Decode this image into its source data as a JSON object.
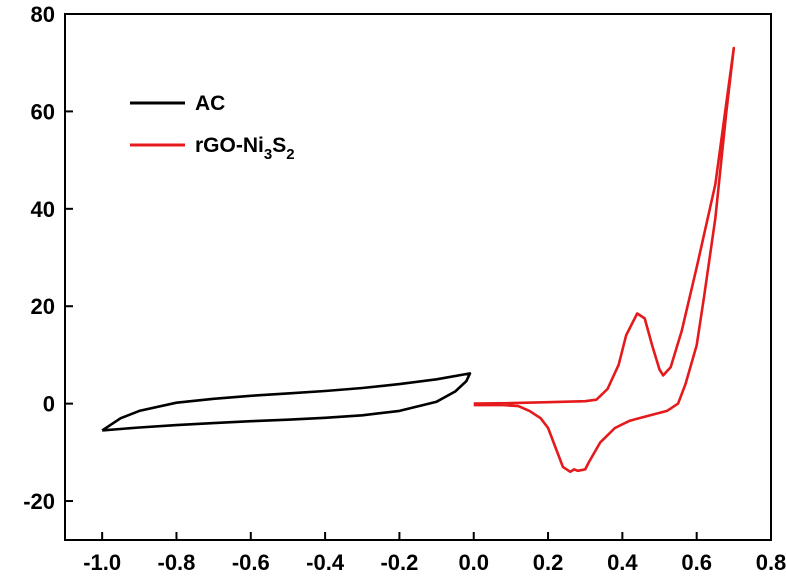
{
  "chart_data": {
    "type": "line",
    "title": "",
    "xlabel": "",
    "ylabel": "",
    "xlim": [
      -1.1,
      0.8
    ],
    "ylim": [
      -28,
      80
    ],
    "x_ticks": [
      -1.0,
      -0.8,
      -0.6,
      -0.4,
      -0.2,
      0.0,
      0.2,
      0.4,
      0.6,
      0.8
    ],
    "y_ticks": [
      -20,
      0,
      20,
      40,
      60,
      80
    ],
    "x_tick_labels": [
      "-1.0",
      "-0.8",
      "-0.6",
      "-0.4",
      "-0.2",
      "0.0",
      "0.2",
      "0.4",
      "0.6",
      "0.8"
    ],
    "y_tick_labels": [
      "-20",
      "0",
      "20",
      "40",
      "60",
      "80"
    ],
    "grid": false,
    "legend_position": "top-left",
    "series": [
      {
        "name": "AC",
        "legend_label": {
          "base": "AC"
        },
        "color": "#000000",
        "points": [
          [
            -1.0,
            -5.5
          ],
          [
            -0.95,
            -3.0
          ],
          [
            -0.9,
            -1.5
          ],
          [
            -0.8,
            0.2
          ],
          [
            -0.7,
            1.0
          ],
          [
            -0.6,
            1.6
          ],
          [
            -0.5,
            2.1
          ],
          [
            -0.4,
            2.6
          ],
          [
            -0.3,
            3.2
          ],
          [
            -0.2,
            4.0
          ],
          [
            -0.1,
            5.0
          ],
          [
            -0.01,
            6.2
          ],
          [
            -0.02,
            4.6
          ],
          [
            -0.05,
            2.5
          ],
          [
            -0.1,
            0.4
          ],
          [
            -0.2,
            -1.5
          ],
          [
            -0.3,
            -2.4
          ],
          [
            -0.4,
            -2.9
          ],
          [
            -0.5,
            -3.3
          ],
          [
            -0.6,
            -3.6
          ],
          [
            -0.7,
            -4.0
          ],
          [
            -0.8,
            -4.4
          ],
          [
            -0.9,
            -4.9
          ],
          [
            -1.0,
            -5.5
          ]
        ]
      },
      {
        "name": "rGO-Ni3S2",
        "legend_label": {
          "base": "rGO-Ni",
          "sub1": "3",
          "mid": "S",
          "sub2": "2"
        },
        "color": "#e41a1c",
        "points": [
          [
            0.0,
            0.0
          ],
          [
            0.1,
            0.1
          ],
          [
            0.2,
            0.3
          ],
          [
            0.3,
            0.5
          ],
          [
            0.33,
            0.8
          ],
          [
            0.36,
            3.0
          ],
          [
            0.39,
            8.0
          ],
          [
            0.41,
            14.0
          ],
          [
            0.44,
            18.5
          ],
          [
            0.46,
            17.5
          ],
          [
            0.48,
            12.0
          ],
          [
            0.5,
            7.0
          ],
          [
            0.51,
            5.8
          ],
          [
            0.53,
            7.5
          ],
          [
            0.56,
            15.0
          ],
          [
            0.6,
            28.0
          ],
          [
            0.65,
            45.0
          ],
          [
            0.7,
            73.0
          ],
          [
            0.68,
            60.0
          ],
          [
            0.65,
            38.0
          ],
          [
            0.62,
            22.0
          ],
          [
            0.6,
            12.0
          ],
          [
            0.57,
            4.0
          ],
          [
            0.55,
            0.0
          ],
          [
            0.52,
            -1.5
          ],
          [
            0.47,
            -2.5
          ],
          [
            0.42,
            -3.5
          ],
          [
            0.38,
            -5.0
          ],
          [
            0.34,
            -8.0
          ],
          [
            0.31,
            -12.0
          ],
          [
            0.3,
            -13.5
          ],
          [
            0.28,
            -13.8
          ],
          [
            0.27,
            -13.5
          ],
          [
            0.26,
            -14.0
          ],
          [
            0.24,
            -13.0
          ],
          [
            0.22,
            -9.0
          ],
          [
            0.2,
            -5.0
          ],
          [
            0.18,
            -3.0
          ],
          [
            0.15,
            -1.5
          ],
          [
            0.12,
            -0.5
          ],
          [
            0.08,
            -0.3
          ],
          [
            0.0,
            -0.3
          ]
        ]
      }
    ]
  }
}
